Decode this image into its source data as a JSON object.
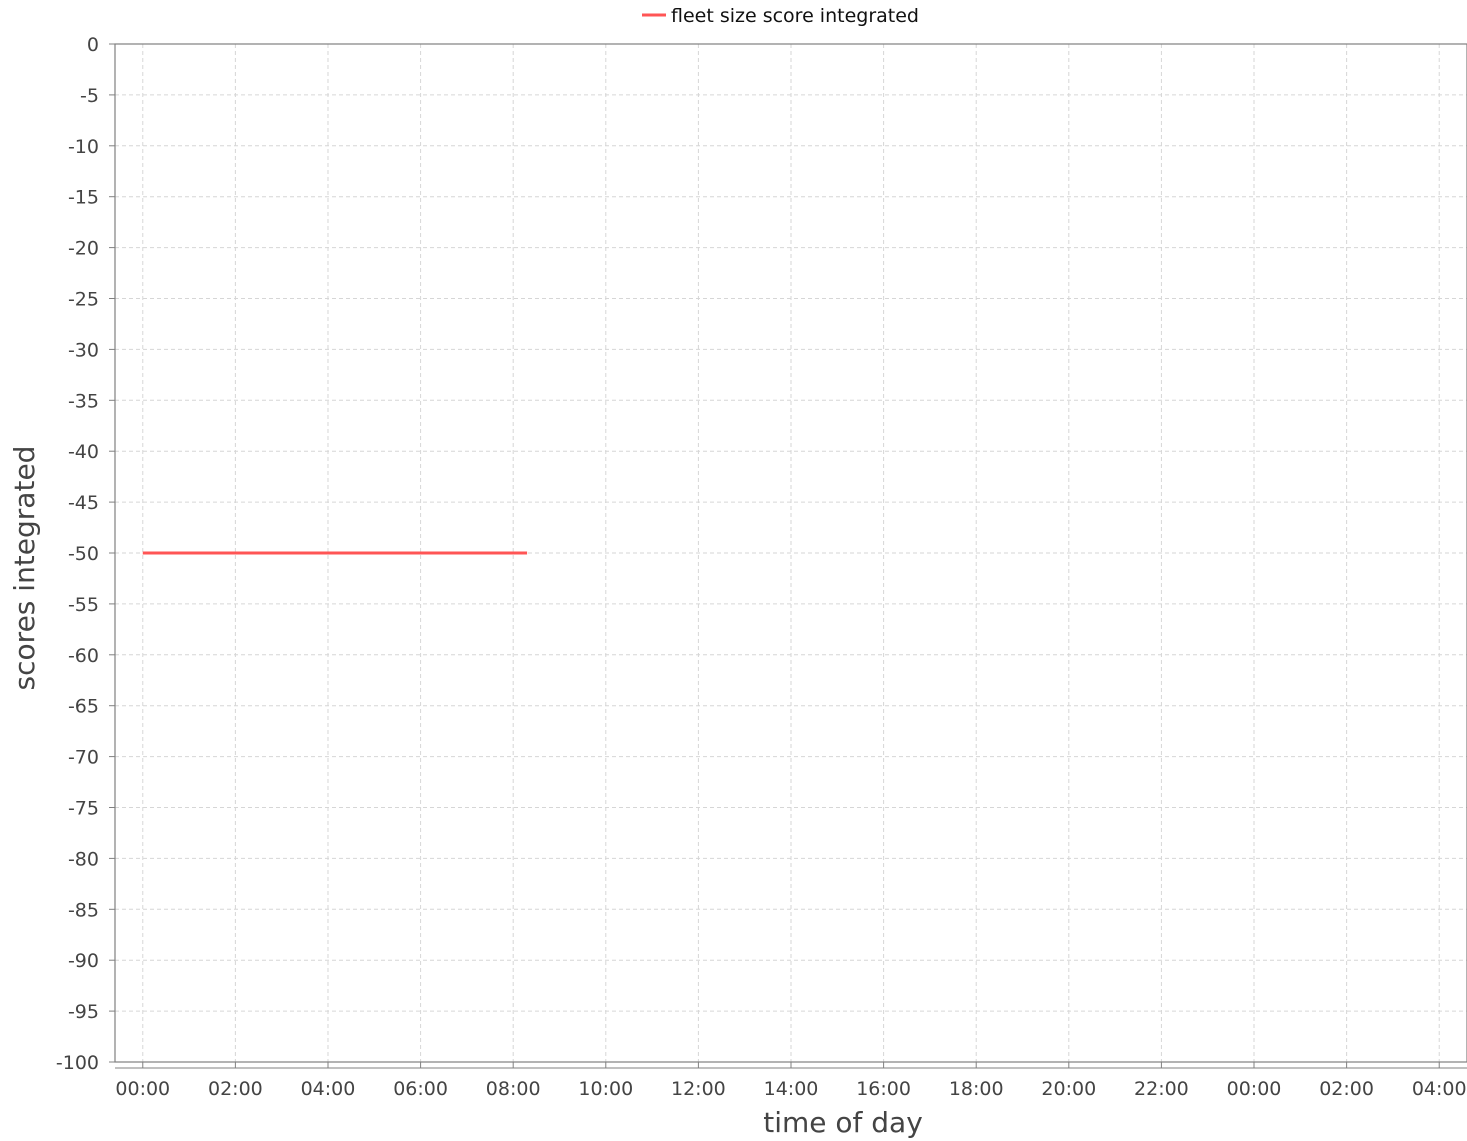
{
  "chart_data": {
    "type": "line",
    "title": "",
    "xlabel": "time of day",
    "ylabel": "scores integrated",
    "legend_position": "top-center",
    "grid": true,
    "x_unit": "hours",
    "xlim": [
      -0.6,
      28.6
    ],
    "ylim": [
      -100,
      0
    ],
    "y_ticks": [
      0,
      -5,
      -10,
      -15,
      -20,
      -25,
      -30,
      -35,
      -40,
      -45,
      -50,
      -55,
      -60,
      -65,
      -70,
      -75,
      -80,
      -85,
      -90,
      -95,
      -100
    ],
    "x_ticks": [
      {
        "value": 0,
        "label": "00:00"
      },
      {
        "value": 2,
        "label": "02:00"
      },
      {
        "value": 4,
        "label": "04:00"
      },
      {
        "value": 6,
        "label": "06:00"
      },
      {
        "value": 8,
        "label": "08:00"
      },
      {
        "value": 10,
        "label": "10:00"
      },
      {
        "value": 12,
        "label": "12:00"
      },
      {
        "value": 14,
        "label": "14:00"
      },
      {
        "value": 16,
        "label": "16:00"
      },
      {
        "value": 18,
        "label": "18:00"
      },
      {
        "value": 20,
        "label": "20:00"
      },
      {
        "value": 22,
        "label": "22:00"
      },
      {
        "value": 24,
        "label": "00:00"
      },
      {
        "value": 26,
        "label": "02:00"
      },
      {
        "value": 28,
        "label": "04:00"
      }
    ],
    "series": [
      {
        "name": "fleet size score integrated",
        "color": "#ff5555",
        "x": [
          0,
          8.3
        ],
        "y": [
          -50,
          -50
        ]
      }
    ]
  }
}
